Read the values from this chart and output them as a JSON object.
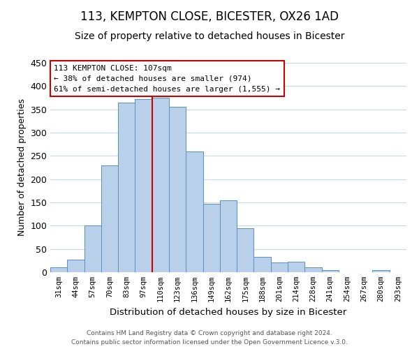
{
  "title": "113, KEMPTON CLOSE, BICESTER, OX26 1AD",
  "subtitle": "Size of property relative to detached houses in Bicester",
  "xlabel": "Distribution of detached houses by size in Bicester",
  "ylabel": "Number of detached properties",
  "bar_labels": [
    "31sqm",
    "44sqm",
    "57sqm",
    "70sqm",
    "83sqm",
    "97sqm",
    "110sqm",
    "123sqm",
    "136sqm",
    "149sqm",
    "162sqm",
    "175sqm",
    "188sqm",
    "201sqm",
    "214sqm",
    "228sqm",
    "241sqm",
    "254sqm",
    "267sqm",
    "280sqm",
    "293sqm"
  ],
  "bar_values": [
    10,
    27,
    100,
    230,
    365,
    372,
    375,
    355,
    260,
    147,
    154,
    95,
    33,
    21,
    22,
    11,
    4,
    0,
    0,
    4,
    0
  ],
  "bar_color": "#b8d0ea",
  "bar_edge_color": "#5a8fc2",
  "vline_index": 6,
  "vline_color": "#cc0000",
  "ylim": [
    0,
    450
  ],
  "yticks": [
    0,
    50,
    100,
    150,
    200,
    250,
    300,
    350,
    400,
    450
  ],
  "annotation_title": "113 KEMPTON CLOSE: 107sqm",
  "annotation_line1": "← 38% of detached houses are smaller (974)",
  "annotation_line2": "61% of semi-detached houses are larger (1,555) →",
  "annotation_box_color": "#ffffff",
  "annotation_box_edge_color": "#cc0000",
  "footer_line1": "Contains HM Land Registry data © Crown copyright and database right 2024.",
  "footer_line2": "Contains public sector information licensed under the Open Government Licence v.3.0.",
  "background_color": "#ffffff",
  "grid_color": "#c8d8e8",
  "title_fontsize": 12,
  "subtitle_fontsize": 10
}
